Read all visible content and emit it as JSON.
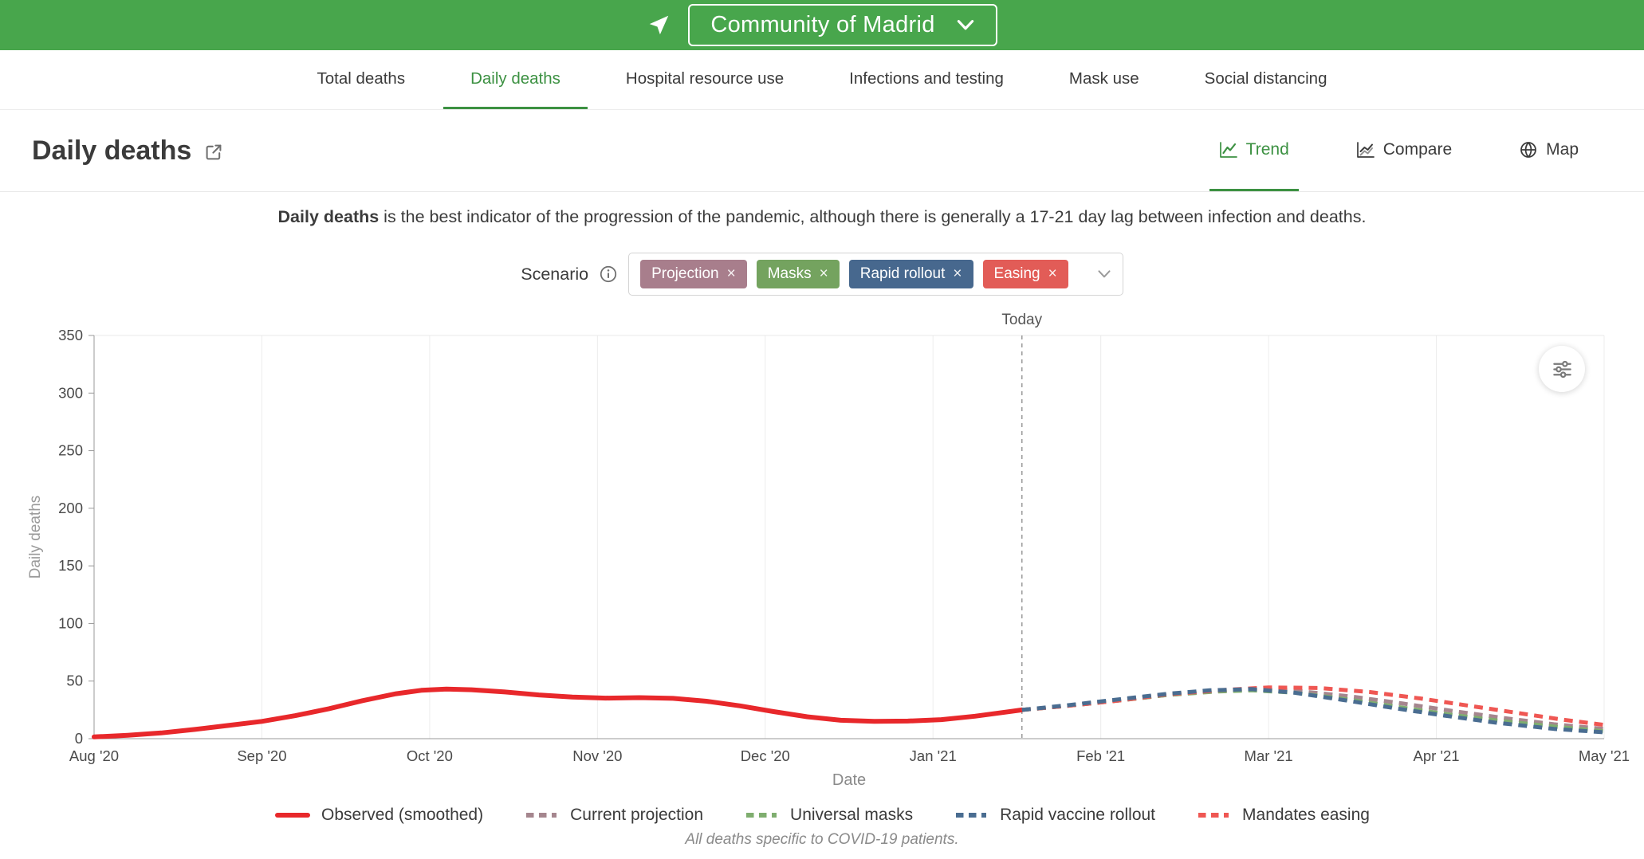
{
  "colors": {
    "header_green": "#48A64C",
    "accent_green": "#3C9142"
  },
  "header": {
    "location_label": "Community of Madrid"
  },
  "nav": {
    "tabs": [
      {
        "label": "Total deaths"
      },
      {
        "label": "Daily deaths"
      },
      {
        "label": "Hospital resource use"
      },
      {
        "label": "Infections and testing"
      },
      {
        "label": "Mask use"
      },
      {
        "label": "Social distancing"
      }
    ]
  },
  "page": {
    "title": "Daily deaths",
    "views": [
      {
        "label": "Trend"
      },
      {
        "label": "Compare"
      },
      {
        "label": "Map"
      }
    ],
    "description_lead": "Daily deaths",
    "description_rest": " is the best indicator of the progression of the pandemic, although there is generally a 17-21 day lag between infection and deaths."
  },
  "scenario": {
    "label": "Scenario",
    "remove_glyph": "×",
    "tags": [
      {
        "label": "Projection",
        "color": "#A87E8C"
      },
      {
        "label": "Masks",
        "color": "#74A35F"
      },
      {
        "label": "Rapid rollout",
        "color": "#47688E"
      },
      {
        "label": "Easing",
        "color": "#E25C57"
      }
    ]
  },
  "chart_data": {
    "type": "line",
    "title": "",
    "xlabel": "Date",
    "ylabel": "Daily deaths",
    "ylim": [
      0,
      350
    ],
    "x_range": [
      0,
      9
    ],
    "grid": "vertical-only",
    "legend_position": "bottom",
    "y_ticks": [
      0,
      50,
      100,
      150,
      200,
      250,
      300,
      350
    ],
    "x_ticks": [
      {
        "x": 0,
        "label": "Aug '20"
      },
      {
        "x": 1,
        "label": "Sep '20"
      },
      {
        "x": 2,
        "label": "Oct '20"
      },
      {
        "x": 3,
        "label": "Nov '20"
      },
      {
        "x": 4,
        "label": "Dec '20"
      },
      {
        "x": 5,
        "label": "Jan '21"
      },
      {
        "x": 6,
        "label": "Feb '21"
      },
      {
        "x": 7,
        "label": "Mar '21"
      },
      {
        "x": 8,
        "label": "Apr '21"
      },
      {
        "x": 9,
        "label": "May '21"
      }
    ],
    "today_x": 5.53,
    "today_label": "Today",
    "x_unit": "months since Aug 1 2020",
    "series": [
      {
        "name": "Observed (smoothed)",
        "color": "#E8282B",
        "dash": null,
        "width": 6,
        "z": 1,
        "points": [
          [
            0,
            1.5
          ],
          [
            0.2,
            3
          ],
          [
            0.4,
            5
          ],
          [
            0.6,
            8
          ],
          [
            0.8,
            11.5
          ],
          [
            1,
            15
          ],
          [
            1.2,
            20
          ],
          [
            1.4,
            26
          ],
          [
            1.6,
            33
          ],
          [
            1.8,
            39
          ],
          [
            1.95,
            42
          ],
          [
            2.1,
            43
          ],
          [
            2.25,
            42.5
          ],
          [
            2.45,
            40.5
          ],
          [
            2.65,
            38
          ],
          [
            2.85,
            36.2
          ],
          [
            3.05,
            35.2
          ],
          [
            3.25,
            35.6
          ],
          [
            3.45,
            35
          ],
          [
            3.65,
            32.5
          ],
          [
            3.85,
            28.5
          ],
          [
            4.05,
            23.5
          ],
          [
            4.25,
            19
          ],
          [
            4.45,
            16
          ],
          [
            4.65,
            15
          ],
          [
            4.85,
            15.3
          ],
          [
            5.05,
            16.5
          ],
          [
            5.25,
            19.5
          ],
          [
            5.53,
            25
          ]
        ]
      },
      {
        "name": "Current projection",
        "color": "#A5868E",
        "dash": "11 8",
        "width": 5,
        "z": 2,
        "points": [
          [
            5.53,
            25
          ],
          [
            5.8,
            28.5
          ],
          [
            6.1,
            33
          ],
          [
            6.4,
            38
          ],
          [
            6.7,
            41.5
          ],
          [
            6.95,
            43
          ],
          [
            7.2,
            41
          ],
          [
            7.5,
            36.5
          ],
          [
            7.8,
            30.5
          ],
          [
            8.1,
            24
          ],
          [
            8.4,
            18
          ],
          [
            8.7,
            12.5
          ],
          [
            9,
            8.5
          ]
        ]
      },
      {
        "name": "Universal masks",
        "color": "#7FAE6F",
        "dash": "11 8",
        "width": 5,
        "z": 3,
        "points": [
          [
            5.53,
            25
          ],
          [
            5.8,
            28.5
          ],
          [
            6.1,
            33
          ],
          [
            6.4,
            38
          ],
          [
            6.7,
            41
          ],
          [
            6.9,
            42
          ],
          [
            7.15,
            40
          ],
          [
            7.45,
            34.5
          ],
          [
            7.75,
            28
          ],
          [
            8.05,
            21.5
          ],
          [
            8.35,
            16
          ],
          [
            8.7,
            10.5
          ],
          [
            9,
            6.5
          ]
        ]
      },
      {
        "name": "Rapid vaccine rollout",
        "color": "#4A6D91",
        "dash": "11 8",
        "width": 5,
        "z": 5,
        "points": [
          [
            5.53,
            25
          ],
          [
            5.8,
            29
          ],
          [
            6.1,
            34
          ],
          [
            6.4,
            39
          ],
          [
            6.65,
            42
          ],
          [
            6.9,
            43
          ],
          [
            7.15,
            40
          ],
          [
            7.45,
            33.5
          ],
          [
            7.75,
            26.5
          ],
          [
            8.05,
            20
          ],
          [
            8.35,
            14
          ],
          [
            8.7,
            8.5
          ],
          [
            9,
            5.5
          ]
        ]
      },
      {
        "name": "Mandates easing",
        "color": "#EF5753",
        "dash": "11 8",
        "width": 5,
        "z": 4,
        "points": [
          [
            5.53,
            25
          ],
          [
            5.8,
            28.5
          ],
          [
            6.1,
            33
          ],
          [
            6.4,
            38.5
          ],
          [
            6.7,
            42
          ],
          [
            7,
            44.5
          ],
          [
            7.3,
            44
          ],
          [
            7.6,
            40.5
          ],
          [
            7.9,
            35
          ],
          [
            8.2,
            28.5
          ],
          [
            8.5,
            22
          ],
          [
            8.75,
            16.5
          ],
          [
            9,
            12
          ]
        ]
      }
    ]
  },
  "footer": {
    "note": "All deaths specific to COVID-19 patients."
  }
}
